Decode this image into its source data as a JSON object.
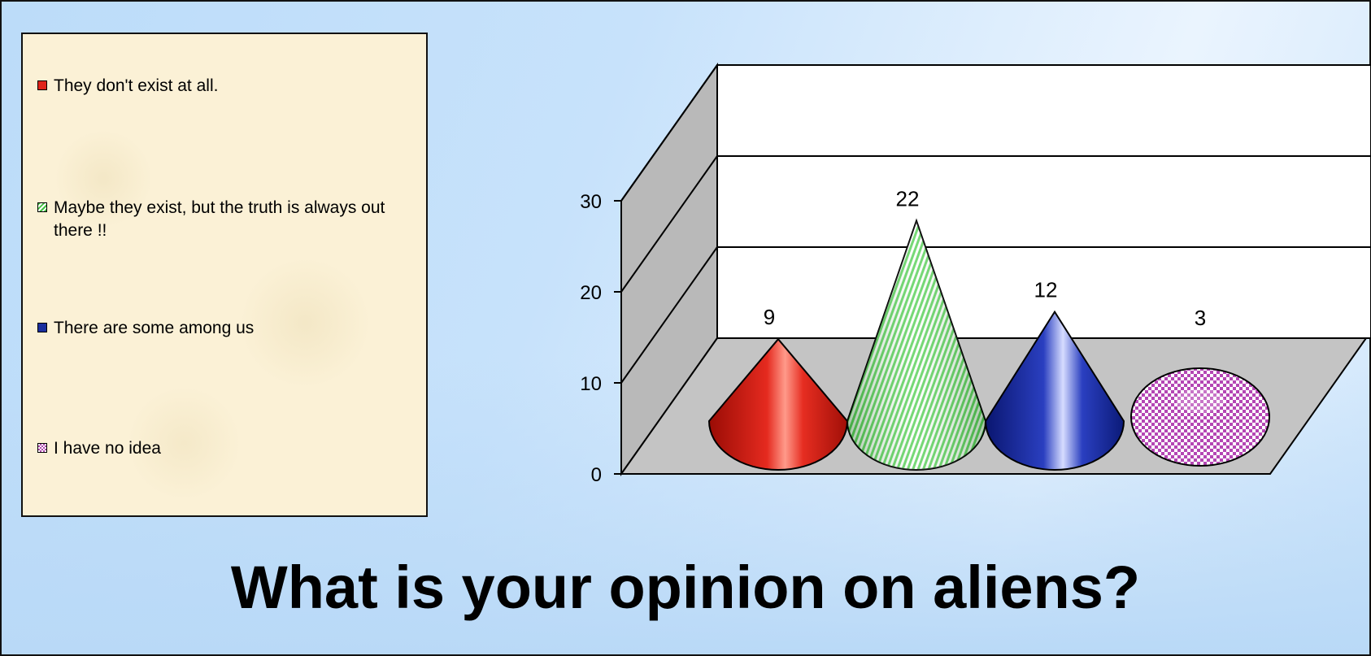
{
  "slide": {
    "title": "What is your opinion on aliens?"
  },
  "legend": {
    "items": [
      {
        "label": "They don't exist at all.",
        "color": "#e0241b",
        "pattern": "solid"
      },
      {
        "label": "Maybe they exist,  but the truth is always out there !!",
        "color": "#3fbf3f",
        "pattern": "diagonal-stripes"
      },
      {
        "label": "There are some among us",
        "color": "#1a2f9e",
        "pattern": "solid"
      },
      {
        "label": "I have no idea",
        "color": "#b04ab0",
        "pattern": "checker"
      }
    ]
  },
  "chart_data": {
    "type": "bar",
    "style": "3d-cone",
    "title": "",
    "xlabel": "",
    "ylabel": "",
    "ylim": [
      0,
      30
    ],
    "yticks": [
      "0",
      "10",
      "20",
      "30"
    ],
    "grid": true,
    "legend_position": "left",
    "categories": [
      "They don't exist at all.",
      "Maybe they exist,  but the truth is always out there !!",
      "There are some among us",
      "I have no idea"
    ],
    "values": [
      9,
      22,
      12,
      3
    ],
    "data_labels": [
      "9",
      "22",
      "12",
      "3"
    ],
    "colors": [
      "#e0241b",
      "#3fbf3f",
      "#1a2f9e",
      "#b04ab0"
    ]
  }
}
